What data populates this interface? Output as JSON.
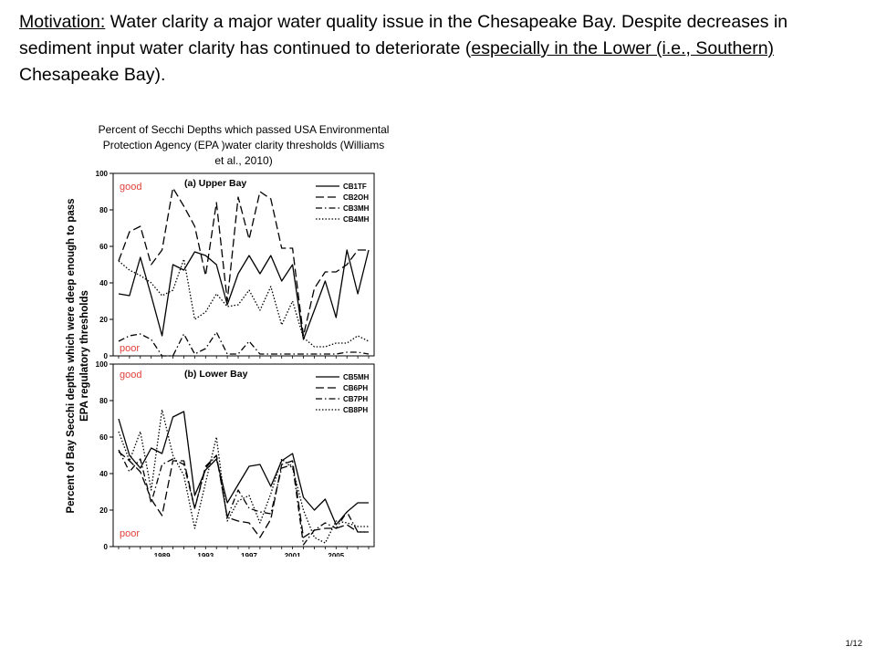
{
  "slide": {
    "motivation_label": "Motivation:",
    "motivation_text_1": " Water clarity a major water quality issue in the Chesapeake Bay.  Despite decreases in sediment input water clarity  has continued to deteriorate (",
    "motivation_underlined": "especially in the Lower (i.e., Southern) ",
    "motivation_text_2": "Chesapeake Bay).",
    "figure_caption": "Percent of Secchi Depths which passed USA Environmental Protection Agency (EPA )water clarity thresholds (Williams et al., 2010)",
    "slide_number": "1/12"
  },
  "figure": {
    "ylabel_line1": "Percent of Bay Secchi depths which were deep enough to pass",
    "ylabel_line2": "EPA regulatory thresholds",
    "good_label": "good",
    "poor_label": "poor",
    "line_color": "#000000",
    "quality_label_color": "#e0413a"
  },
  "chart_data": [
    {
      "type": "line",
      "title": "(a) Upper Bay",
      "ylim": [
        0,
        100
      ],
      "yticks": [
        0,
        20,
        40,
        60,
        80,
        100
      ],
      "legend_position": "top-right",
      "x": [
        1985,
        1986,
        1987,
        1988,
        1989,
        1990,
        1991,
        1992,
        1993,
        1994,
        1995,
        1996,
        1997,
        1998,
        1999,
        2000,
        2001,
        2002,
        2003,
        2004,
        2005,
        2006,
        2007,
        2008
      ],
      "series": [
        {
          "name": "CB1TF",
          "dash": "solid",
          "values": [
            34,
            33,
            54,
            33,
            11,
            50,
            47,
            57,
            55,
            50,
            28,
            45,
            55,
            45,
            55,
            41,
            50,
            9,
            25,
            41,
            21,
            58,
            34,
            58
          ]
        },
        {
          "name": "CB2OH",
          "dash": "long-dash",
          "values": [
            52,
            68,
            71,
            50,
            58,
            92,
            82,
            71,
            44,
            84,
            30,
            87,
            64,
            90,
            86,
            59,
            59,
            11,
            37,
            46,
            46,
            50,
            58,
            58
          ]
        },
        {
          "name": "CB3MH",
          "dash": "dash-dot",
          "values": [
            8,
            11,
            12,
            9,
            0,
            0,
            12,
            1,
            4,
            13,
            1,
            1,
            8,
            1,
            1,
            1,
            1,
            1,
            1,
            1,
            1,
            2,
            2,
            1
          ]
        },
        {
          "name": "CB4MH",
          "dash": "dotted",
          "values": [
            52,
            47,
            44,
            40,
            33,
            36,
            53,
            20,
            24,
            34,
            27,
            28,
            36,
            25,
            38,
            17,
            30,
            10,
            5,
            5,
            7,
            7,
            11,
            8
          ]
        }
      ]
    },
    {
      "type": "line",
      "title": "(b) Lower Bay",
      "ylim": [
        0,
        100
      ],
      "yticks": [
        0,
        20,
        40,
        60,
        80,
        100
      ],
      "xticks": [
        1989,
        1993,
        1997,
        2001,
        2005
      ],
      "legend_position": "top-right",
      "x": [
        1985,
        1986,
        1987,
        1988,
        1989,
        1990,
        1991,
        1992,
        1993,
        1994,
        1995,
        1996,
        1997,
        1998,
        1999,
        2000,
        2001,
        2002,
        2003,
        2004,
        2005,
        2006,
        2007,
        2008
      ],
      "series": [
        {
          "name": "CB5MH",
          "dash": "solid",
          "values": [
            70,
            50,
            43,
            54,
            51,
            71,
            74,
            28,
            42,
            48,
            24,
            34,
            44,
            45,
            33,
            47,
            51,
            27,
            20,
            26,
            12,
            19,
            24,
            24
          ]
        },
        {
          "name": "CB6PH",
          "dash": "long-dash",
          "values": [
            52,
            47,
            41,
            26,
            17,
            47,
            47,
            21,
            44,
            50,
            16,
            14,
            13,
            5,
            15,
            45,
            47,
            5,
            9,
            10,
            10,
            12,
            8,
            8
          ]
        },
        {
          "name": "CB7PH",
          "dash": "dash-dot",
          "values": [
            53,
            41,
            48,
            24,
            45,
            48,
            45,
            21,
            43,
            50,
            16,
            31,
            21,
            19,
            18,
            43,
            45,
            1,
            9,
            13,
            10,
            19,
            8,
            8
          ]
        },
        {
          "name": "CB8PH",
          "dash": "dotted",
          "values": [
            63,
            47,
            63,
            31,
            75,
            50,
            39,
            10,
            35,
            60,
            14,
            25,
            28,
            13,
            29,
            48,
            43,
            20,
            5,
            2,
            14,
            13,
            11,
            11
          ]
        }
      ]
    }
  ]
}
